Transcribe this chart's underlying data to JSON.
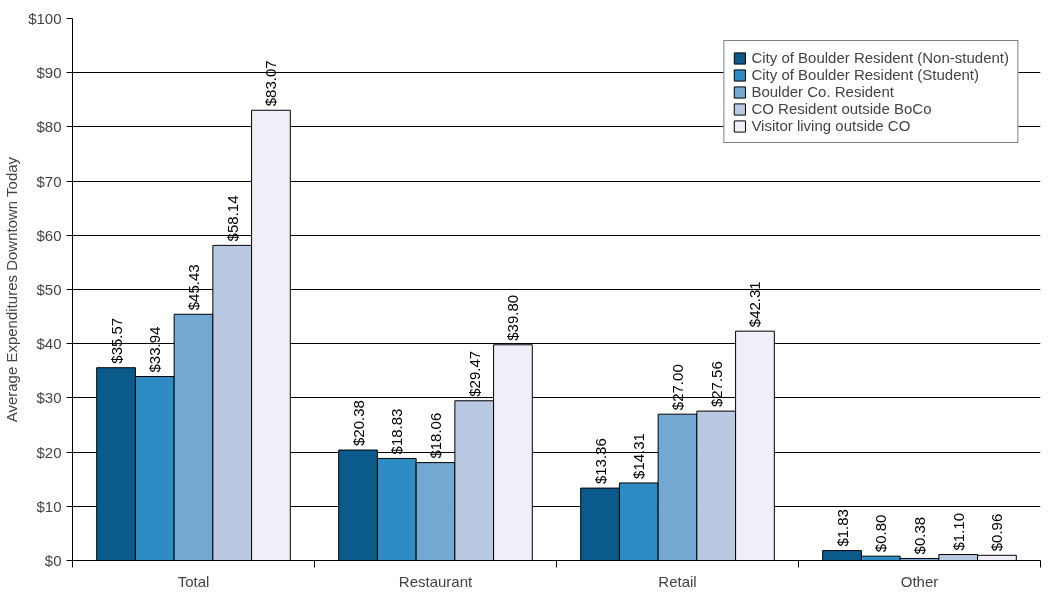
{
  "chart_data": {
    "type": "bar",
    "ylabel": "Average Expenditures Downtown Today",
    "categories": [
      "Total",
      "Restaurant",
      "Retail",
      "Other"
    ],
    "ylim": [
      0,
      100
    ],
    "yticks": [
      {
        "value": 0,
        "label": "$0"
      },
      {
        "value": 10,
        "label": "$10"
      },
      {
        "value": 20,
        "label": "$20"
      },
      {
        "value": 30,
        "label": "$30"
      },
      {
        "value": 40,
        "label": "$40"
      },
      {
        "value": 50,
        "label": "$50"
      },
      {
        "value": 60,
        "label": "$60"
      },
      {
        "value": 70,
        "label": "$70"
      },
      {
        "value": 80,
        "label": "$80"
      },
      {
        "value": 90,
        "label": "$90"
      },
      {
        "value": 100,
        "label": "$100"
      }
    ],
    "grid": "y",
    "legend": "top right",
    "series": [
      {
        "name": "City of Boulder Resident (Non-student)",
        "color": "#0a5a8c",
        "values": [
          35.57,
          20.38,
          13.36,
          1.83
        ],
        "value_labels": [
          "$35.57",
          "$20.38",
          "$13.36",
          "$1.83"
        ]
      },
      {
        "name": "City of Boulder Resident (Student)",
        "color": "#2e8cc4",
        "values": [
          33.94,
          18.83,
          14.31,
          0.8
        ],
        "value_labels": [
          "$33.94",
          "$18.83",
          "$14.31",
          "$0.80"
        ]
      },
      {
        "name": "Boulder Co. Resident",
        "color": "#72a8d2",
        "values": [
          45.43,
          18.06,
          27.0,
          0.38
        ],
        "value_labels": [
          "$45.43",
          "$18.06",
          "$27.00",
          "$0.38"
        ]
      },
      {
        "name": "CO Resident outside BoCo",
        "color": "#b9c9e2",
        "values": [
          58.14,
          29.47,
          27.56,
          1.1
        ],
        "value_labels": [
          "$58.14",
          "$29.47",
          "$27.56",
          "$1.10"
        ]
      },
      {
        "name": "Visitor living outside CO",
        "color": "#f1eef9",
        "values": [
          83.07,
          39.8,
          42.31,
          0.96
        ],
        "value_labels": [
          "$83.07",
          "$39.80",
          "$42.31",
          "$0.96"
        ]
      }
    ]
  }
}
